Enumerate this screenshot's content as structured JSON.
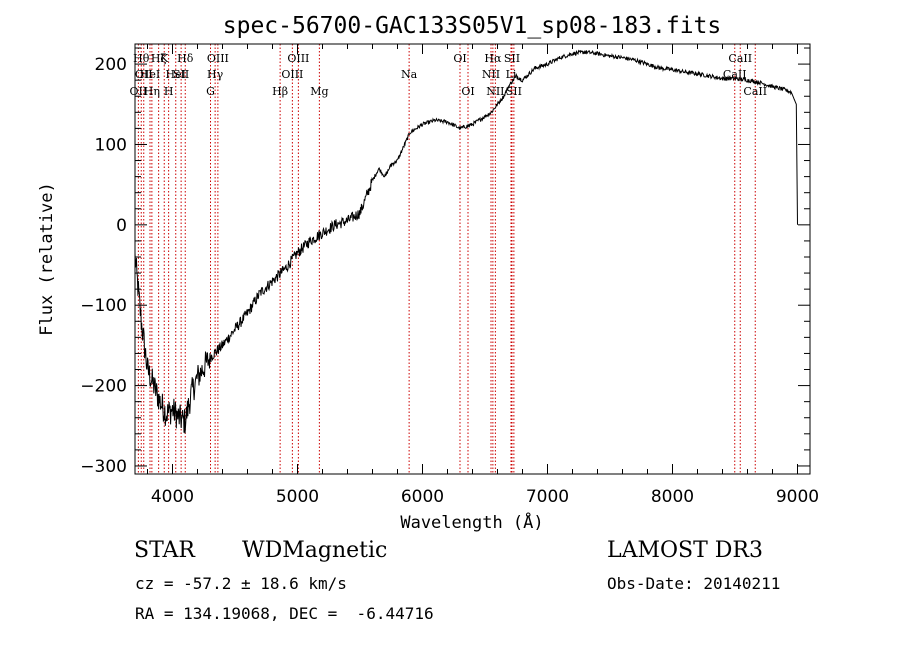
{
  "chart_data": {
    "type": "line",
    "title": "spec-56700-GAC133S05V1_sp08-183.fits",
    "xlabel": "Wavelength (Å)",
    "ylabel": "Flux (relative)",
    "xlim": [
      3700,
      9100
    ],
    "ylim": [
      -310,
      225
    ],
    "xticks": [
      4000,
      5000,
      6000,
      7000,
      8000,
      9000
    ],
    "yticks": [
      -300,
      -200,
      -100,
      0,
      100,
      200
    ],
    "grid": false,
    "series": [
      {
        "color": "#000000",
        "x": [
          3700,
          3750,
          3800,
          3850,
          3900,
          3950,
          4000,
          4050,
          4100,
          4150,
          4200,
          4300,
          4400,
          4500,
          4600,
          4700,
          4800,
          4900,
          5000,
          5100,
          5200,
          5300,
          5400,
          5500,
          5550,
          5600,
          5650,
          5700,
          5750,
          5800,
          5900,
          6000,
          6100,
          6200,
          6300,
          6400,
          6500,
          6550,
          6600,
          6650,
          6700,
          6750,
          6800,
          6900,
          7000,
          7100,
          7200,
          7300,
          7400,
          7500,
          7600,
          7700,
          7800,
          7900,
          8000,
          8100,
          8200,
          8300,
          8400,
          8500,
          8600,
          8700,
          8800,
          8900,
          8950,
          8990,
          9000
        ],
        "y": [
          -40,
          -120,
          -180,
          -200,
          -220,
          -235,
          -230,
          -240,
          -245,
          -210,
          -190,
          -165,
          -150,
          -130,
          -110,
          -85,
          -70,
          -55,
          -35,
          -20,
          -10,
          0,
          5,
          15,
          35,
          55,
          70,
          60,
          75,
          80,
          115,
          125,
          130,
          128,
          120,
          125,
          135,
          140,
          150,
          160,
          175,
          185,
          180,
          195,
          200,
          208,
          213,
          215,
          213,
          210,
          208,
          205,
          200,
          195,
          193,
          190,
          188,
          185,
          182,
          182,
          180,
          177,
          172,
          168,
          165,
          150,
          0
        ]
      }
    ],
    "line_markers": [
      {
        "wavelength": 3727,
        "label": "OII",
        "row": 3
      },
      {
        "wavelength": 3750,
        "label": "Hθ",
        "row": 1
      },
      {
        "wavelength": 3770,
        "label": "OII",
        "row": 2
      },
      {
        "wavelength": 3820,
        "label": "HeI",
        "row": 2
      },
      {
        "wavelength": 3835,
        "label": "Hη",
        "row": 3
      },
      {
        "wavelength": 3889,
        "label": "Hζ",
        "row": 1
      },
      {
        "wavelength": 3934,
        "label": "K",
        "row": 1
      },
      {
        "wavelength": 3969,
        "label": "H",
        "row": 3
      },
      {
        "wavelength": 4026,
        "label": "HeI",
        "row": 2
      },
      {
        "wavelength": 4069,
        "label": "SII",
        "row": 2
      },
      {
        "wavelength": 4102,
        "label": "Hδ",
        "row": 1
      },
      {
        "wavelength": 4304,
        "label": "G",
        "row": 3
      },
      {
        "wavelength": 4341,
        "label": "Hγ",
        "row": 2
      },
      {
        "wavelength": 4363,
        "label": "OIII",
        "row": 1
      },
      {
        "wavelength": 4861,
        "label": "Hβ",
        "row": 3
      },
      {
        "wavelength": 4959,
        "label": "OIII",
        "row": 2
      },
      {
        "wavelength": 5007,
        "label": "OIII",
        "row": 1
      },
      {
        "wavelength": 5175,
        "label": "Mg",
        "row": 3
      },
      {
        "wavelength": 5893,
        "label": "Na",
        "row": 2
      },
      {
        "wavelength": 6300,
        "label": "OI",
        "row": 1
      },
      {
        "wavelength": 6364,
        "label": "OI",
        "row": 3
      },
      {
        "wavelength": 6548,
        "label": "NII",
        "row": 2
      },
      {
        "wavelength": 6563,
        "label": "Hα",
        "row": 1
      },
      {
        "wavelength": 6583,
        "label": "NII",
        "row": 3
      },
      {
        "wavelength": 6708,
        "label": "Li",
        "row": 2
      },
      {
        "wavelength": 6716,
        "label": "SII",
        "row": 1
      },
      {
        "wavelength": 6731,
        "label": "SII",
        "row": 3
      },
      {
        "wavelength": 8498,
        "label": "CaII",
        "row": 2
      },
      {
        "wavelength": 8542,
        "label": "CaII",
        "row": 1
      },
      {
        "wavelength": 8662,
        "label": "CaII",
        "row": 3
      }
    ],
    "marker_color": "#cc0000"
  },
  "info": {
    "object_class": "STAR",
    "subclass": "WDMagnetic",
    "survey": "LAMOST DR3",
    "redshift": "cz = -57.2 ± 18.6 km/s",
    "obs_date": "Obs-Date: 20140211",
    "coords": "RA = 134.19068, DEC =  -6.44716"
  }
}
